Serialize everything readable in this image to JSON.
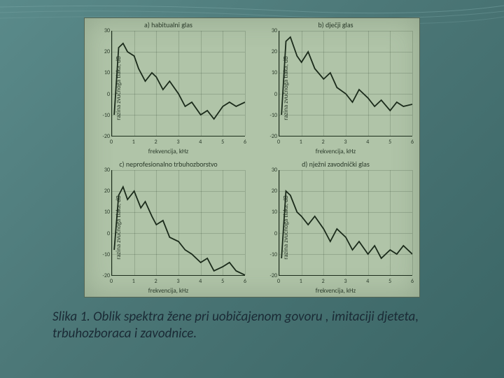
{
  "caption": "Slika 1. Oblik spektra žene pri uobičajenom govoru , imitaciji djeteta, trbuhozboraca i zavodnice.",
  "axes": {
    "x_label": "frekvencija, kHz",
    "y_label": "razina zvučnoga tlaka, dB",
    "x_ticks": [
      0,
      1,
      2,
      3,
      4,
      5,
      6
    ],
    "y_ticks": [
      -20,
      -10,
      0,
      10,
      20,
      30
    ],
    "xlim": [
      0,
      6
    ],
    "ylim": [
      -20,
      30
    ],
    "line_color": "#1a2a1a",
    "line_width": 1.8,
    "grid_color": "rgba(40,60,40,0.2)",
    "font_size_ticks": 8,
    "font_size_labels": 9,
    "font_size_title": 10,
    "background_color": "#b0c4a8"
  },
  "charts": [
    {
      "title": "a) habitualni glas",
      "data": [
        {
          "x": 0.1,
          "y": -10
        },
        {
          "x": 0.3,
          "y": 22
        },
        {
          "x": 0.5,
          "y": 24
        },
        {
          "x": 0.7,
          "y": 20
        },
        {
          "x": 1.0,
          "y": 18
        },
        {
          "x": 1.2,
          "y": 12
        },
        {
          "x": 1.5,
          "y": 6
        },
        {
          "x": 1.8,
          "y": 10
        },
        {
          "x": 2.0,
          "y": 8
        },
        {
          "x": 2.3,
          "y": 2
        },
        {
          "x": 2.6,
          "y": 6
        },
        {
          "x": 3.0,
          "y": 0
        },
        {
          "x": 3.3,
          "y": -6
        },
        {
          "x": 3.6,
          "y": -4
        },
        {
          "x": 4.0,
          "y": -10
        },
        {
          "x": 4.3,
          "y": -8
        },
        {
          "x": 4.6,
          "y": -12
        },
        {
          "x": 5.0,
          "y": -6
        },
        {
          "x": 5.3,
          "y": -4
        },
        {
          "x": 5.6,
          "y": -6
        },
        {
          "x": 6.0,
          "y": -4
        }
      ]
    },
    {
      "title": "b) dječji glas",
      "data": [
        {
          "x": 0.1,
          "y": -10
        },
        {
          "x": 0.3,
          "y": 25
        },
        {
          "x": 0.5,
          "y": 27
        },
        {
          "x": 0.8,
          "y": 18
        },
        {
          "x": 1.0,
          "y": 15
        },
        {
          "x": 1.3,
          "y": 20
        },
        {
          "x": 1.6,
          "y": 12
        },
        {
          "x": 2.0,
          "y": 7
        },
        {
          "x": 2.3,
          "y": 10
        },
        {
          "x": 2.6,
          "y": 3
        },
        {
          "x": 3.0,
          "y": 0
        },
        {
          "x": 3.3,
          "y": -4
        },
        {
          "x": 3.6,
          "y": 2
        },
        {
          "x": 4.0,
          "y": -2
        },
        {
          "x": 4.3,
          "y": -6
        },
        {
          "x": 4.6,
          "y": -3
        },
        {
          "x": 5.0,
          "y": -8
        },
        {
          "x": 5.3,
          "y": -4
        },
        {
          "x": 5.6,
          "y": -6
        },
        {
          "x": 6.0,
          "y": -5
        }
      ]
    },
    {
      "title": "c) neprofesionalno trbuhozborstvo",
      "data": [
        {
          "x": 0.1,
          "y": -8
        },
        {
          "x": 0.3,
          "y": 18
        },
        {
          "x": 0.5,
          "y": 22
        },
        {
          "x": 0.7,
          "y": 16
        },
        {
          "x": 1.0,
          "y": 20
        },
        {
          "x": 1.3,
          "y": 12
        },
        {
          "x": 1.5,
          "y": 15
        },
        {
          "x": 1.8,
          "y": 8
        },
        {
          "x": 2.0,
          "y": 4
        },
        {
          "x": 2.3,
          "y": 6
        },
        {
          "x": 2.6,
          "y": -2
        },
        {
          "x": 3.0,
          "y": -4
        },
        {
          "x": 3.3,
          "y": -8
        },
        {
          "x": 3.6,
          "y": -10
        },
        {
          "x": 4.0,
          "y": -14
        },
        {
          "x": 4.3,
          "y": -12
        },
        {
          "x": 4.6,
          "y": -18
        },
        {
          "x": 5.0,
          "y": -16
        },
        {
          "x": 5.3,
          "y": -14
        },
        {
          "x": 5.6,
          "y": -18
        },
        {
          "x": 6.0,
          "y": -20
        }
      ]
    },
    {
      "title": "d) nježni zavodnički glas",
      "data": [
        {
          "x": 0.1,
          "y": -12
        },
        {
          "x": 0.3,
          "y": 20
        },
        {
          "x": 0.5,
          "y": 18
        },
        {
          "x": 0.8,
          "y": 10
        },
        {
          "x": 1.0,
          "y": 8
        },
        {
          "x": 1.3,
          "y": 4
        },
        {
          "x": 1.6,
          "y": 8
        },
        {
          "x": 2.0,
          "y": 2
        },
        {
          "x": 2.3,
          "y": -4
        },
        {
          "x": 2.6,
          "y": 2
        },
        {
          "x": 3.0,
          "y": -2
        },
        {
          "x": 3.3,
          "y": -8
        },
        {
          "x": 3.6,
          "y": -4
        },
        {
          "x": 4.0,
          "y": -10
        },
        {
          "x": 4.3,
          "y": -6
        },
        {
          "x": 4.6,
          "y": -12
        },
        {
          "x": 5.0,
          "y": -8
        },
        {
          "x": 5.3,
          "y": -10
        },
        {
          "x": 5.6,
          "y": -6
        },
        {
          "x": 6.0,
          "y": -10
        }
      ]
    }
  ],
  "slide": {
    "bg_gradient": [
      "#5a8a8a",
      "#4a7575",
      "#3a6565"
    ],
    "deco_line_color": "#7aa5a5"
  }
}
